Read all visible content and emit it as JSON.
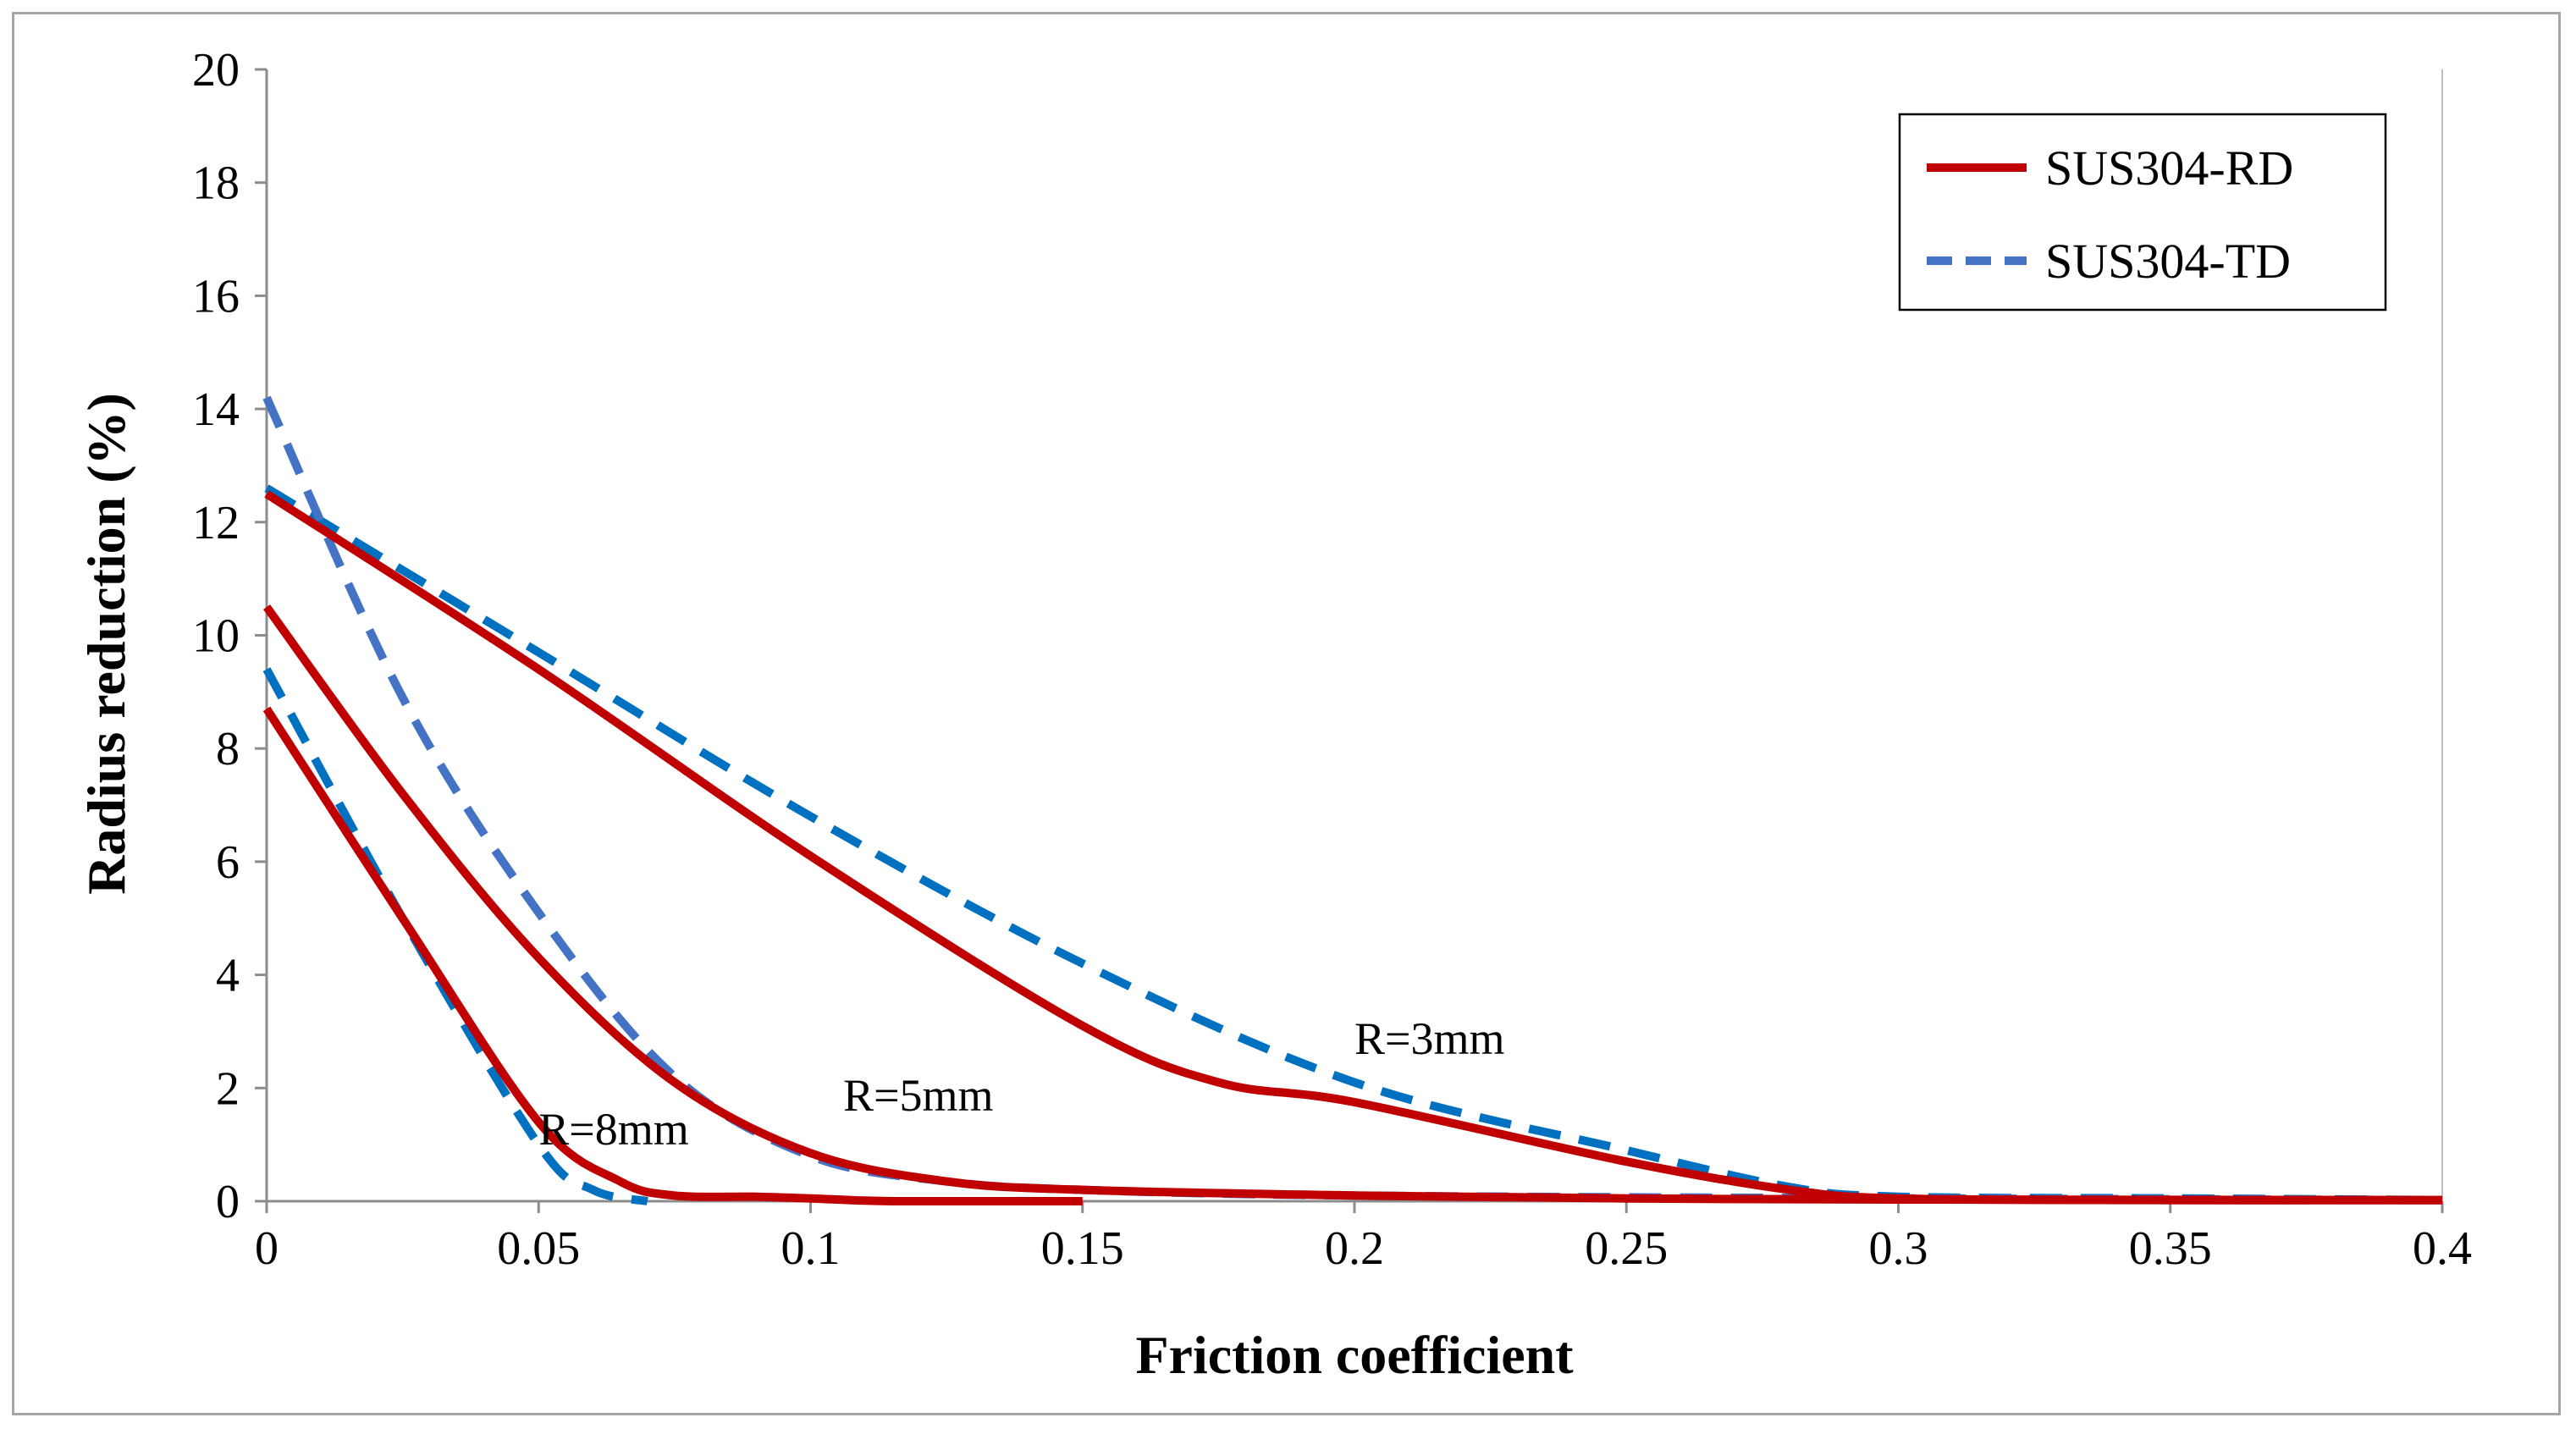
{
  "chart_data": {
    "type": "line",
    "xlabel": "Friction coefficient",
    "ylabel": "Radius reduction (%)",
    "xlim": [
      0,
      0.4
    ],
    "ylim": [
      0,
      20
    ],
    "xticks": [
      "0",
      "0.05",
      "0.1",
      "0.15",
      "0.2",
      "0.25",
      "0.3",
      "0.35",
      "0.4"
    ],
    "yticks": [
      "0",
      "2",
      "4",
      "6",
      "8",
      "10",
      "12",
      "14",
      "16",
      "18",
      "20"
    ],
    "grid": false,
    "legend_position": "top-right",
    "legend": [
      "SUS304-RD",
      "SUS304-TD"
    ],
    "annotations": [
      {
        "text": "R=3mm",
        "x": 0.2,
        "y": 2.6
      },
      {
        "text": "R=5mm",
        "x": 0.106,
        "y": 1.6
      },
      {
        "text": "R=8mm",
        "x": 0.05,
        "y": 1.0
      }
    ],
    "series": [
      {
        "name": "SUS304-RD",
        "group": "R=3mm",
        "style": "solid",
        "color": "#c00000",
        "x": [
          0,
          0.05,
          0.1,
          0.15,
          0.175,
          0.2,
          0.25,
          0.28,
          0.3,
          0.35,
          0.4
        ],
        "y": [
          12.5,
          9.4,
          6.1,
          3.1,
          2.1,
          1.75,
          0.7,
          0.2,
          0.05,
          0.02,
          0.02
        ]
      },
      {
        "name": "SUS304-RD",
        "group": "R=5mm",
        "style": "solid",
        "color": "#c00000",
        "x": [
          0,
          0.025,
          0.05,
          0.075,
          0.1,
          0.125,
          0.15,
          0.2,
          0.25,
          0.3,
          0.4
        ],
        "y": [
          10.5,
          7.2,
          4.3,
          2.1,
          0.85,
          0.35,
          0.2,
          0.1,
          0.05,
          0.03,
          0.02
        ]
      },
      {
        "name": "SUS304-RD",
        "group": "R=8mm",
        "style": "solid",
        "color": "#c00000",
        "x": [
          0,
          0.025,
          0.05,
          0.065,
          0.075,
          0.09,
          0.1,
          0.115,
          0.15
        ],
        "y": [
          8.7,
          5.0,
          1.4,
          0.35,
          0.1,
          0.08,
          0.05,
          0.0,
          0.0
        ]
      },
      {
        "name": "SUS304-TD",
        "group": "R=3mm",
        "style": "dashed",
        "color": "#0070c0",
        "x": [
          0,
          0.05,
          0.1,
          0.15,
          0.2,
          0.25,
          0.28,
          0.3,
          0.35,
          0.4
        ],
        "y": [
          12.6,
          9.7,
          6.8,
          4.2,
          2.1,
          0.9,
          0.25,
          0.08,
          0.05,
          0.02
        ]
      },
      {
        "name": "SUS304-TD",
        "group": "R=5mm",
        "style": "dashed",
        "color": "#4472c4",
        "x": [
          0,
          0.025,
          0.05,
          0.075,
          0.1,
          0.125,
          0.15,
          0.2,
          0.3,
          0.4
        ],
        "y": [
          14.2,
          8.9,
          5.1,
          2.2,
          0.8,
          0.35,
          0.2,
          0.1,
          0.05,
          0.02
        ]
      },
      {
        "name": "SUS304-TD",
        "group": "R=8mm",
        "style": "dashed",
        "color": "#0070c0",
        "x": [
          0,
          0.025,
          0.05,
          0.06,
          0.07
        ],
        "y": [
          9.4,
          5.0,
          1.0,
          0.2,
          0.0
        ]
      }
    ]
  }
}
